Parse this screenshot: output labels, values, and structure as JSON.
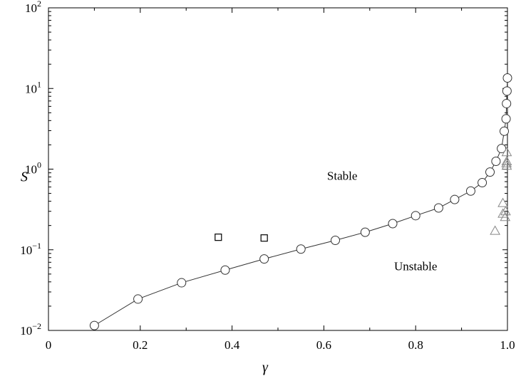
{
  "chart_data": {
    "type": "scatter",
    "title": "",
    "xlabel": "γ",
    "ylabel": "S",
    "xlim": [
      0,
      1.0
    ],
    "ylim": [
      0.01,
      100
    ],
    "yscale": "log",
    "grid": false,
    "x_ticks": [
      {
        "value": 0,
        "label": "0"
      },
      {
        "value": 0.2,
        "label": "0.2"
      },
      {
        "value": 0.4,
        "label": "0.4"
      },
      {
        "value": 0.6,
        "label": "0.6"
      },
      {
        "value": 0.8,
        "label": "0.8"
      },
      {
        "value": 1.0,
        "label": "1.0"
      }
    ],
    "y_ticks": [
      {
        "value": 0.01,
        "base": "10",
        "exp": "−2"
      },
      {
        "value": 0.1,
        "base": "10",
        "exp": "−1"
      },
      {
        "value": 1,
        "base": "10",
        "exp": "0"
      },
      {
        "value": 10,
        "base": "10",
        "exp": "1"
      },
      {
        "value": 100,
        "base": "10",
        "exp": "2"
      }
    ],
    "series": [
      {
        "marker": "circle-line",
        "color": "#333333",
        "points": [
          [
            0.1,
            0.0115
          ],
          [
            0.195,
            0.0245
          ],
          [
            0.29,
            0.039
          ],
          [
            0.385,
            0.056
          ],
          [
            0.47,
            0.077
          ],
          [
            0.55,
            0.102
          ],
          [
            0.625,
            0.131
          ],
          [
            0.69,
            0.165
          ],
          [
            0.75,
            0.211
          ],
          [
            0.8,
            0.265
          ],
          [
            0.85,
            0.33
          ],
          [
            0.885,
            0.42
          ],
          [
            0.92,
            0.535
          ],
          [
            0.945,
            0.68
          ],
          [
            0.962,
            0.92
          ],
          [
            0.975,
            1.25
          ],
          [
            0.987,
            1.8
          ],
          [
            0.993,
            2.95
          ],
          [
            0.997,
            4.2
          ],
          [
            0.998,
            6.5
          ],
          [
            0.999,
            9.3
          ],
          [
            1.0,
            13.5
          ]
        ]
      },
      {
        "marker": "square",
        "color": "#000000",
        "points": [
          [
            0.37,
            0.143
          ],
          [
            0.47,
            0.14
          ]
        ]
      },
      {
        "marker": "triangle",
        "color": "#888888",
        "points": [
          [
            0.973,
            0.172
          ],
          [
            0.99,
            0.38
          ],
          [
            0.99,
            0.28
          ],
          [
            0.995,
            0.255
          ],
          [
            0.996,
            0.3
          ],
          [
            0.998,
            1.18
          ],
          [
            0.999,
            1.25
          ],
          [
            1.0,
            1.62
          ],
          [
            1.0,
            1.1
          ]
        ]
      }
    ],
    "annotations": [
      {
        "text": "Stable",
        "x": 0.64,
        "y": 0.74
      },
      {
        "text": "Unstable",
        "x": 0.8,
        "y": 0.056
      }
    ]
  }
}
